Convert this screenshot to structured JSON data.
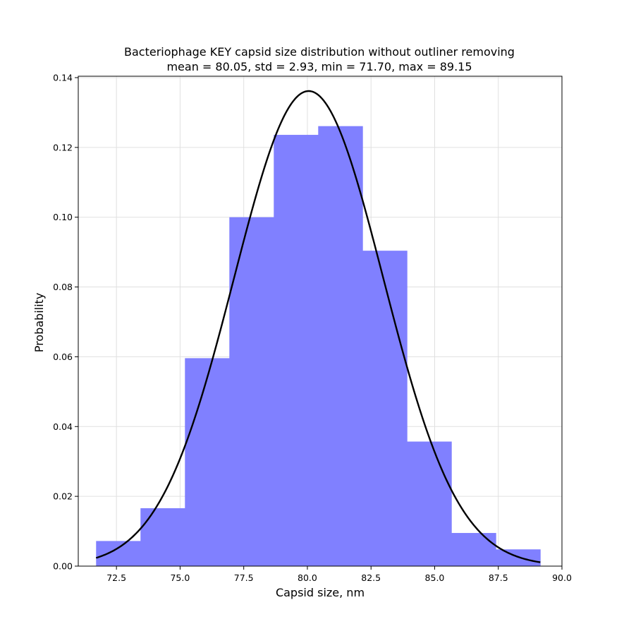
{
  "chart_data": {
    "type": "bar",
    "title_line1": "Bacteriophage KEY capsid size distribution without outliner removing",
    "title_line2": "mean = 80.05,  std = 2.93, min = 71.70, max = 89.15",
    "xlabel": "Capsid size, nm",
    "ylabel": "Probability",
    "xlim": [
      71.0,
      90.0
    ],
    "ylim": [
      0.0,
      0.1404
    ],
    "xticks": [
      "72.5",
      "75.0",
      "77.5",
      "80.0",
      "82.5",
      "85.0",
      "87.5",
      "90.0"
    ],
    "yticks": [
      "0.00",
      "0.02",
      "0.04",
      "0.06",
      "0.08",
      "0.10",
      "0.12",
      "0.14"
    ],
    "grid": true,
    "bar_color": "#8080ff",
    "curve_color": "#000000",
    "histogram": {
      "bin_edges": [
        71.7,
        73.445,
        75.19,
        76.935,
        78.68,
        80.425,
        82.17,
        83.915,
        85.66,
        87.405,
        89.15
      ],
      "values": [
        0.0072,
        0.0166,
        0.0596,
        0.1,
        0.1236,
        0.1261,
        0.0904,
        0.0357,
        0.0095,
        0.0048
      ]
    },
    "normal_fit": {
      "mean": 80.05,
      "std": 2.93,
      "x_range": [
        71.7,
        89.15
      ]
    }
  }
}
